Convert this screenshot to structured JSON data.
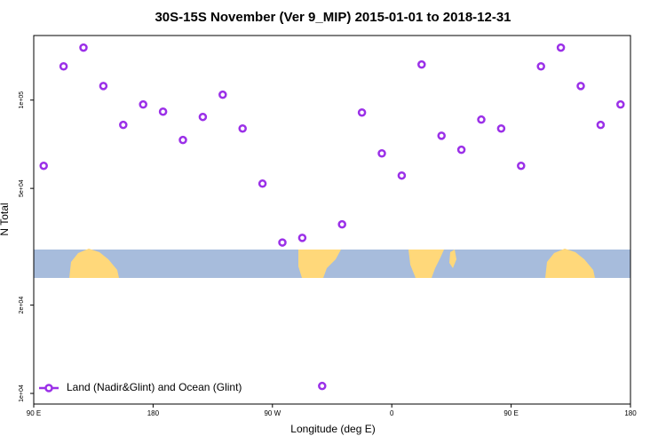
{
  "chart_data": {
    "type": "scatter",
    "title": "30S-15S November (Ver 9_MIP)   2015-01-01 to 2018-12-31",
    "x_label": "Longitude (deg E)",
    "y_label": "N Total",
    "log_y": true,
    "legend_position": "bottom-left",
    "xlim": [
      90,
      540
    ],
    "xticks": [
      {
        "value": 90,
        "label": "90 E"
      },
      180,
      {
        "value": 270,
        "label": "90 W"
      },
      {
        "value": 360,
        "label": "0"
      },
      {
        "value": 450,
        "label": "90 E"
      },
      {
        "value": 540,
        "label": "180"
      }
    ],
    "ylim": [
      9200,
      166000
    ],
    "yticks": [
      {
        "value": 10000,
        "label": "1e+04"
      },
      {
        "value": 20000,
        "label": "2e+04"
      },
      {
        "value": 50000,
        "label": "5e+04"
      },
      {
        "value": 100000,
        "label": "1e+05"
      }
    ],
    "series": [
      {
        "name": "Land (Nadir&Glint) and Ocean (Glint)",
        "color": "#9b30e8",
        "x": [
          97.5,
          112.5,
          127.5,
          142.5,
          157.5,
          172.5,
          187.5,
          202.5,
          217.5,
          232.5,
          247.5,
          262.5,
          277.5,
          292.5,
          307.5,
          322.5,
          337.5,
          352.5,
          367.5,
          382.5,
          397.5,
          412.5,
          427.5,
          442.5,
          457.5,
          472.5,
          487.5,
          502.5,
          517.5,
          532.5
        ],
        "values": [
          59700,
          130300,
          151000,
          111700,
          82300,
          96600,
          91300,
          73100,
          87600,
          104300,
          80000,
          51900,
          32700,
          33900,
          10600,
          37700,
          90700,
          65800,
          55300,
          132200,
          75600,
          67700,
          85800,
          80000,
          59700,
          130300,
          151000,
          111700,
          82300,
          96600
        ]
      }
    ]
  }
}
